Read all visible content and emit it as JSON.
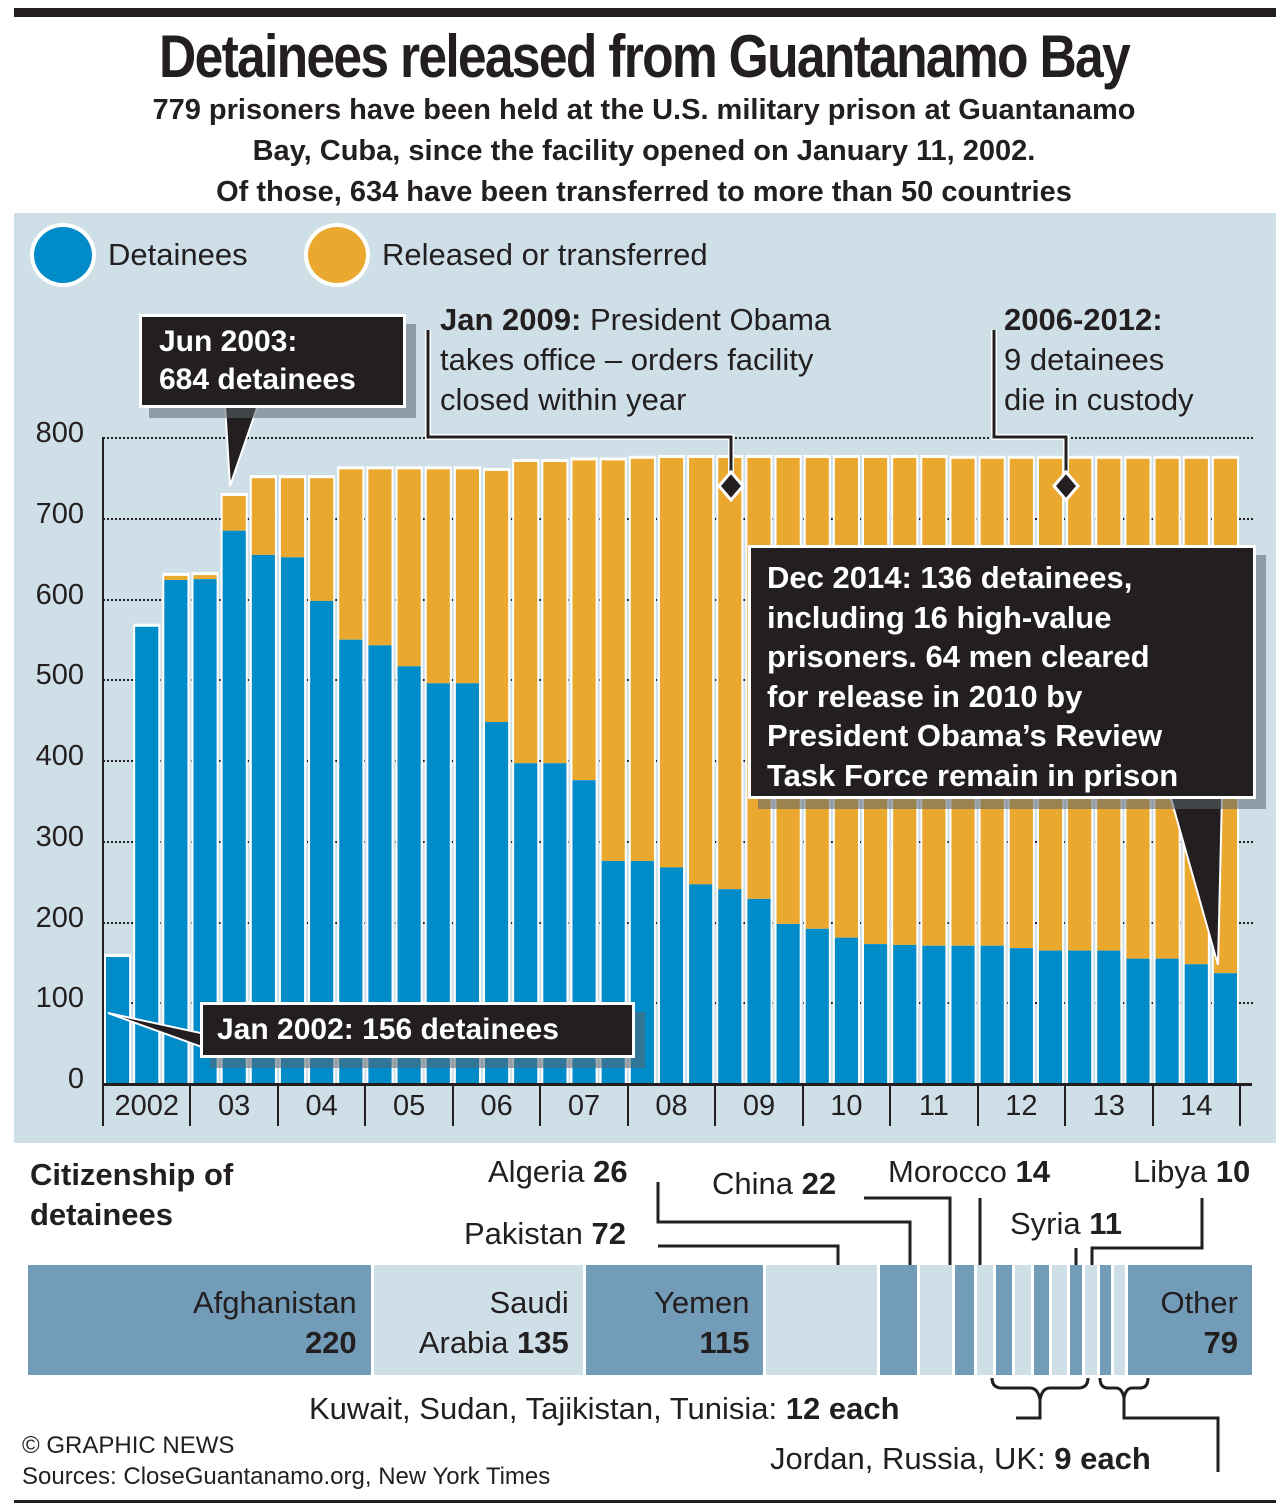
{
  "header": {
    "title": "Detainees released from Guantanamo Bay",
    "subtitle_lines": [
      "779 prisoners have been held at the U.S. military prison at Guantanamo",
      "Bay, Cuba, since the facility opened on January 11, 2002.",
      "Of those, 634 have been transferred to more than 50 countries"
    ]
  },
  "colors": {
    "detainees": "#008bc9",
    "released": "#eaa82e",
    "panel_bg": "#cfdfe8",
    "callout_bg": "#231f20",
    "cit_dark": "#739cb8",
    "cit_light": "#cfdfe8"
  },
  "chart_data": {
    "type": "bar",
    "stacked": true,
    "title": "Detainees released from Guantanamo Bay",
    "xlabel": "",
    "ylabel": "",
    "ylim": [
      0,
      800
    ],
    "yticks": [
      0,
      100,
      200,
      300,
      400,
      500,
      600,
      700,
      800
    ],
    "grid": true,
    "legend_position": "top-left",
    "legend": [
      "Detainees",
      "Released or transferred"
    ],
    "year_labels": [
      "2002",
      "03",
      "04",
      "05",
      "06",
      "07",
      "08",
      "09",
      "10",
      "11",
      "12",
      "13",
      "14"
    ],
    "bars_per_year": 3,
    "series": [
      {
        "name": "Detainees",
        "values": [
          156,
          565,
          623,
          624,
          684,
          654,
          651,
          597,
          549,
          542,
          516,
          495,
          495,
          447,
          396,
          396,
          375,
          275,
          275,
          267,
          246,
          240,
          228,
          197,
          191,
          180,
          172,
          171,
          170,
          170,
          170,
          167,
          164,
          164,
          164,
          154,
          154,
          147,
          136
        ]
      },
      {
        "name": "Released or transferred",
        "values": [
          0,
          0,
          5,
          5,
          43,
          95,
          98,
          152,
          211,
          218,
          244,
          265,
          265,
          311,
          373,
          373,
          396,
          496,
          498,
          507,
          528,
          534,
          546,
          577,
          583,
          594,
          602,
          603,
          604,
          603,
          603,
          606,
          609,
          609,
          609,
          619,
          619,
          626,
          637
        ]
      }
    ]
  },
  "annotations": {
    "jun2003": {
      "line1": "Jun 2003:",
      "line2": "684 detainees"
    },
    "jan2002": {
      "text": "Jan 2002: 156 detainees"
    },
    "jan2009": {
      "bold": "Jan 2009:",
      "rest1": " President Obama",
      "line2": "takes office – orders facility",
      "line3": "closed within year"
    },
    "deaths": {
      "bold": "2006-2012:",
      "line2": "9 detainees",
      "line3": "die in custody"
    },
    "dec2014": {
      "lines": [
        "Dec 2014: 136 detainees,",
        "including 16 high-value",
        "prisoners. 64 men cleared",
        "for release in 2010 by",
        "President Obama’s Review",
        "Task Force remain in prison"
      ]
    }
  },
  "citizenship": {
    "title_line1": "Citizenship of",
    "title_line2": "detainees",
    "segments": [
      {
        "name": "Afghanistan",
        "value": 220,
        "label_top": "Afghanistan",
        "label_bottom_name": "",
        "label_bottom_value": "220",
        "shade": "dark"
      },
      {
        "name": "Saudi Arabia",
        "value": 135,
        "label_top": "Saudi",
        "label_bottom_name": "Arabia ",
        "label_bottom_value": "135",
        "shade": "light"
      },
      {
        "name": "Yemen",
        "value": 115,
        "label_top": "Yemen",
        "label_bottom_name": "",
        "label_bottom_value": "115",
        "shade": "dark"
      },
      {
        "name": "Pakistan",
        "value": 72,
        "shade": "light"
      },
      {
        "name": "Algeria",
        "value": 26,
        "shade": "dark"
      },
      {
        "name": "China",
        "value": 22,
        "shade": "light"
      },
      {
        "name": "Morocco",
        "value": 14,
        "shade": "dark"
      },
      {
        "name": "Kuwait",
        "value": 12,
        "shade": "light"
      },
      {
        "name": "Sudan",
        "value": 12,
        "shade": "dark"
      },
      {
        "name": "Tajikistan",
        "value": 12,
        "shade": "light"
      },
      {
        "name": "Tunisia",
        "value": 12,
        "shade": "dark"
      },
      {
        "name": "Syria",
        "value": 11,
        "shade": "light"
      },
      {
        "name": "Libya",
        "value": 10,
        "shade": "dark"
      },
      {
        "name": "Jordan",
        "value": 9,
        "shade": "light"
      },
      {
        "name": "Russia",
        "value": 9,
        "shade": "dark"
      },
      {
        "name": "UK",
        "value": 9,
        "shade": "light"
      },
      {
        "name": "Other",
        "value": 79,
        "label_top": "Other",
        "label_bottom_name": "",
        "label_bottom_value": "79",
        "shade": "dark"
      }
    ],
    "callouts": {
      "algeria": {
        "name": "Algeria ",
        "value": "26"
      },
      "china": {
        "name": "China ",
        "value": "22"
      },
      "morocco": {
        "name": "Morocco ",
        "value": "14"
      },
      "libya": {
        "name": "Libya ",
        "value": "10"
      },
      "pakistan": {
        "name": "Pakistan ",
        "value": "72"
      },
      "syria": {
        "name": "Syria ",
        "value": "11"
      },
      "group12": {
        "name": "Kuwait, Sudan, Tajikistan, Tunisia: ",
        "value": "12 each"
      },
      "group9": {
        "name": "Jordan, Russia, UK: ",
        "value": "9 each"
      }
    }
  },
  "footer": {
    "credit": "© GRAPHIC NEWS",
    "sources": "Sources: CloseGuantanamo.org, New York Times"
  }
}
